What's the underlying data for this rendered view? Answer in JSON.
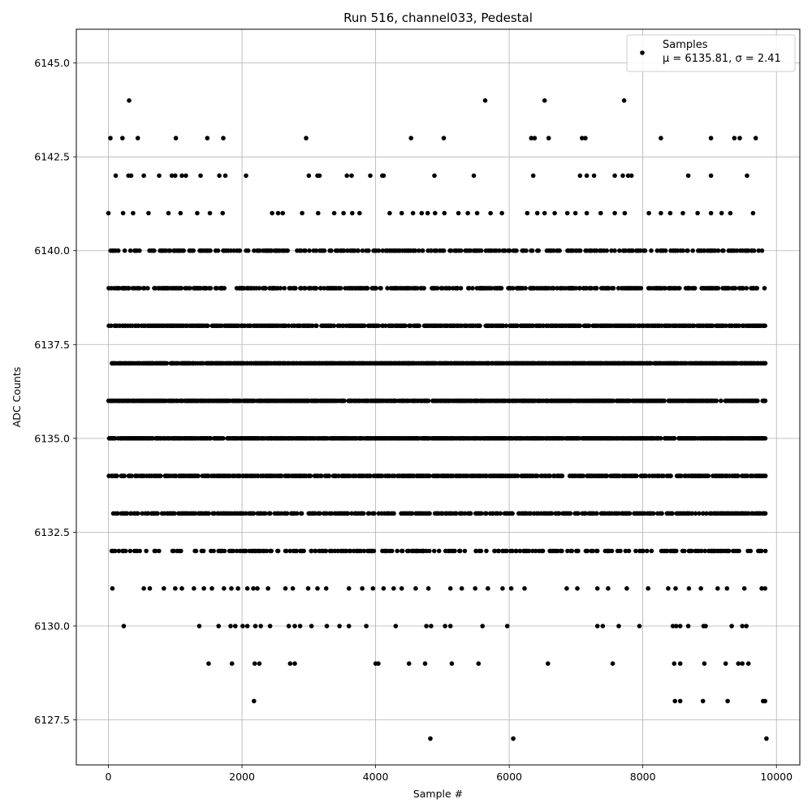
{
  "chart_data": {
    "type": "scatter",
    "title": "Run 516, channel033, Pedestal",
    "xlabel": "Sample #",
    "ylabel": "ADC Counts",
    "xlim": [
      -480,
      10350
    ],
    "ylim": [
      6126.3,
      6145.9
    ],
    "x_ticks": [
      0,
      2000,
      4000,
      6000,
      8000,
      10000
    ],
    "y_ticks": [
      6127.5,
      6130.0,
      6132.5,
      6135.0,
      6137.5,
      6140.0,
      6142.5,
      6145.0
    ],
    "x_tick_labels": [
      "0",
      "2000",
      "4000",
      "6000",
      "8000",
      "10000"
    ],
    "y_tick_labels": [
      "6127.5",
      "6130.0",
      "6132.5",
      "6135.0",
      "6137.5",
      "6140.0",
      "6142.5",
      "6145.0"
    ],
    "grid": true,
    "legend_position": "top-right",
    "series": [
      {
        "name": "Samples",
        "annotation": "μ = 6135.81, σ = 2.41",
        "color": "#000000",
        "sample_count": 9840,
        "points": [
          [
            310,
            6144
          ],
          [
            5640,
            6144
          ],
          [
            6530,
            6144
          ],
          [
            7720,
            6144
          ],
          [
            30,
            6143
          ],
          [
            210,
            6143
          ],
          [
            440,
            6143
          ],
          [
            1010,
            6143
          ],
          [
            1480,
            6143
          ],
          [
            1720,
            6143
          ],
          [
            2960,
            6143
          ],
          [
            4530,
            6143
          ],
          [
            5020,
            6143
          ],
          [
            6330,
            6143
          ],
          [
            6380,
            6143
          ],
          [
            6590,
            6143
          ],
          [
            7090,
            6143
          ],
          [
            7140,
            6143
          ],
          [
            8270,
            6143
          ],
          [
            9020,
            6143
          ],
          [
            9370,
            6143
          ],
          [
            9450,
            6143
          ],
          [
            9690,
            6143
          ],
          [
            110,
            6142
          ],
          [
            300,
            6142
          ],
          [
            340,
            6142
          ],
          [
            530,
            6142
          ],
          [
            760,
            6142
          ],
          [
            950,
            6142
          ],
          [
            1000,
            6142
          ],
          [
            1100,
            6142
          ],
          [
            1160,
            6142
          ],
          [
            1380,
            6142
          ],
          [
            1660,
            6142
          ],
          [
            1750,
            6142
          ],
          [
            2060,
            6142
          ],
          [
            3000,
            6142
          ],
          [
            3130,
            6142
          ],
          [
            3160,
            6142
          ],
          [
            3570,
            6142
          ],
          [
            3640,
            6142
          ],
          [
            3920,
            6142
          ],
          [
            4100,
            6142
          ],
          [
            4120,
            6142
          ],
          [
            4880,
            6142
          ],
          [
            5470,
            6142
          ],
          [
            6360,
            6142
          ],
          [
            7060,
            6142
          ],
          [
            7160,
            6142
          ],
          [
            7270,
            6142
          ],
          [
            7580,
            6142
          ],
          [
            7700,
            6142
          ],
          [
            7780,
            6142
          ],
          [
            7830,
            6142
          ],
          [
            8680,
            6142
          ],
          [
            9020,
            6142
          ],
          [
            9560,
            6142
          ],
          [
            0,
            6141
          ],
          [
            220,
            6141
          ],
          [
            370,
            6141
          ],
          [
            600,
            6141
          ],
          [
            900,
            6141
          ],
          [
            1080,
            6141
          ],
          [
            1330,
            6141
          ],
          [
            1520,
            6141
          ],
          [
            1710,
            6141
          ],
          [
            2450,
            6141
          ],
          [
            2540,
            6141
          ],
          [
            2610,
            6141
          ],
          [
            2900,
            6141
          ],
          [
            3140,
            6141
          ],
          [
            3380,
            6141
          ],
          [
            3520,
            6141
          ],
          [
            3650,
            6141
          ],
          [
            3760,
            6141
          ],
          [
            4210,
            6141
          ],
          [
            4390,
            6141
          ],
          [
            4560,
            6141
          ],
          [
            4690,
            6141
          ],
          [
            4780,
            6141
          ],
          [
            4890,
            6141
          ],
          [
            5030,
            6141
          ],
          [
            5240,
            6141
          ],
          [
            5380,
            6141
          ],
          [
            5520,
            6141
          ],
          [
            5720,
            6141
          ],
          [
            5890,
            6141
          ],
          [
            6270,
            6141
          ],
          [
            6420,
            6141
          ],
          [
            6530,
            6141
          ],
          [
            6680,
            6141
          ],
          [
            6870,
            6141
          ],
          [
            6990,
            6141
          ],
          [
            7160,
            6141
          ],
          [
            7370,
            6141
          ],
          [
            7580,
            6141
          ],
          [
            7730,
            6141
          ],
          [
            8090,
            6141
          ],
          [
            8270,
            6141
          ],
          [
            8410,
            6141
          ],
          [
            8600,
            6141
          ],
          [
            8820,
            6141
          ],
          [
            9020,
            6141
          ],
          [
            9180,
            6141
          ],
          [
            9310,
            6141
          ],
          [
            9650,
            6141
          ],
          [
            5470,
            6140
          ],
          [
            6090,
            6140
          ],
          [
            7230,
            6140
          ],
          [
            8520,
            6140
          ],
          [
            9320,
            6140
          ],
          [
            5200,
            6139
          ],
          [
            6950,
            6139
          ],
          [
            8400,
            6139
          ],
          [
            9490,
            6139
          ],
          [
            3300,
            6138
          ],
          [
            6700,
            6138
          ],
          [
            9760,
            6138
          ],
          [
            4500,
            6137
          ],
          [
            7900,
            6137
          ],
          [
            9560,
            6137
          ],
          [
            2400,
            6136
          ],
          [
            6200,
            6136
          ],
          [
            9400,
            6136
          ],
          [
            3700,
            6135
          ],
          [
            7300,
            6135
          ],
          [
            9780,
            6135
          ],
          [
            3100,
            6134
          ],
          [
            5990,
            6134
          ],
          [
            9170,
            6134
          ],
          [
            4240,
            6133
          ],
          [
            8260,
            6133
          ],
          [
            9730,
            6133
          ],
          [
            50,
            6132
          ],
          [
            2800,
            6132
          ],
          [
            6350,
            6132
          ],
          [
            8480,
            6132
          ],
          [
            60,
            6131
          ],
          [
            530,
            6131
          ],
          [
            620,
            6131
          ],
          [
            830,
            6131
          ],
          [
            1000,
            6131
          ],
          [
            1100,
            6131
          ],
          [
            1280,
            6131
          ],
          [
            1430,
            6131
          ],
          [
            1550,
            6131
          ],
          [
            1730,
            6131
          ],
          [
            1840,
            6131
          ],
          [
            1940,
            6131
          ],
          [
            2080,
            6131
          ],
          [
            2170,
            6131
          ],
          [
            2230,
            6131
          ],
          [
            2390,
            6131
          ],
          [
            2650,
            6131
          ],
          [
            2760,
            6131
          ],
          [
            2990,
            6131
          ],
          [
            3130,
            6131
          ],
          [
            3260,
            6131
          ],
          [
            3600,
            6131
          ],
          [
            3800,
            6131
          ],
          [
            3960,
            6131
          ],
          [
            4120,
            6131
          ],
          [
            4270,
            6131
          ],
          [
            4390,
            6131
          ],
          [
            4600,
            6131
          ],
          [
            4790,
            6131
          ],
          [
            5120,
            6131
          ],
          [
            5290,
            6131
          ],
          [
            5490,
            6131
          ],
          [
            5680,
            6131
          ],
          [
            5900,
            6131
          ],
          [
            6030,
            6131
          ],
          [
            6230,
            6131
          ],
          [
            6860,
            6131
          ],
          [
            7020,
            6131
          ],
          [
            7320,
            6131
          ],
          [
            7480,
            6131
          ],
          [
            7760,
            6131
          ],
          [
            8080,
            6131
          ],
          [
            8380,
            6131
          ],
          [
            8490,
            6131
          ],
          [
            8690,
            6131
          ],
          [
            8870,
            6131
          ],
          [
            9120,
            6131
          ],
          [
            9260,
            6131
          ],
          [
            9520,
            6131
          ],
          [
            9780,
            6131
          ],
          [
            9830,
            6131
          ],
          [
            230,
            6130
          ],
          [
            1360,
            6130
          ],
          [
            1650,
            6130
          ],
          [
            1830,
            6130
          ],
          [
            1900,
            6130
          ],
          [
            2010,
            6130
          ],
          [
            2080,
            6130
          ],
          [
            2200,
            6130
          ],
          [
            2280,
            6130
          ],
          [
            2420,
            6130
          ],
          [
            2700,
            6130
          ],
          [
            2790,
            6130
          ],
          [
            2870,
            6130
          ],
          [
            3040,
            6130
          ],
          [
            3270,
            6130
          ],
          [
            3460,
            6130
          ],
          [
            3600,
            6130
          ],
          [
            3860,
            6130
          ],
          [
            4300,
            6130
          ],
          [
            4760,
            6130
          ],
          [
            4830,
            6130
          ],
          [
            5040,
            6130
          ],
          [
            5120,
            6130
          ],
          [
            5600,
            6130
          ],
          [
            5970,
            6130
          ],
          [
            7320,
            6130
          ],
          [
            7400,
            6130
          ],
          [
            7640,
            6130
          ],
          [
            7950,
            6130
          ],
          [
            8450,
            6130
          ],
          [
            8500,
            6130
          ],
          [
            8560,
            6130
          ],
          [
            8680,
            6130
          ],
          [
            8910,
            6130
          ],
          [
            8940,
            6130
          ],
          [
            9330,
            6130
          ],
          [
            9490,
            6130
          ],
          [
            9550,
            6130
          ],
          [
            1500,
            6129
          ],
          [
            1850,
            6129
          ],
          [
            2190,
            6129
          ],
          [
            2260,
            6129
          ],
          [
            2720,
            6129
          ],
          [
            2790,
            6129
          ],
          [
            4000,
            6129
          ],
          [
            4040,
            6129
          ],
          [
            4500,
            6129
          ],
          [
            4740,
            6129
          ],
          [
            5140,
            6129
          ],
          [
            5540,
            6129
          ],
          [
            6580,
            6129
          ],
          [
            7550,
            6129
          ],
          [
            8470,
            6129
          ],
          [
            8560,
            6129
          ],
          [
            8920,
            6129
          ],
          [
            9240,
            6129
          ],
          [
            9430,
            6129
          ],
          [
            9490,
            6129
          ],
          [
            9580,
            6129
          ],
          [
            2180,
            6128
          ],
          [
            8480,
            6128
          ],
          [
            8560,
            6128
          ],
          [
            8900,
            6128
          ],
          [
            9270,
            6128
          ],
          [
            9800,
            6128
          ],
          [
            9830,
            6128
          ],
          [
            4820,
            6127
          ],
          [
            6060,
            6127
          ],
          [
            9850,
            6127
          ]
        ]
      }
    ]
  }
}
